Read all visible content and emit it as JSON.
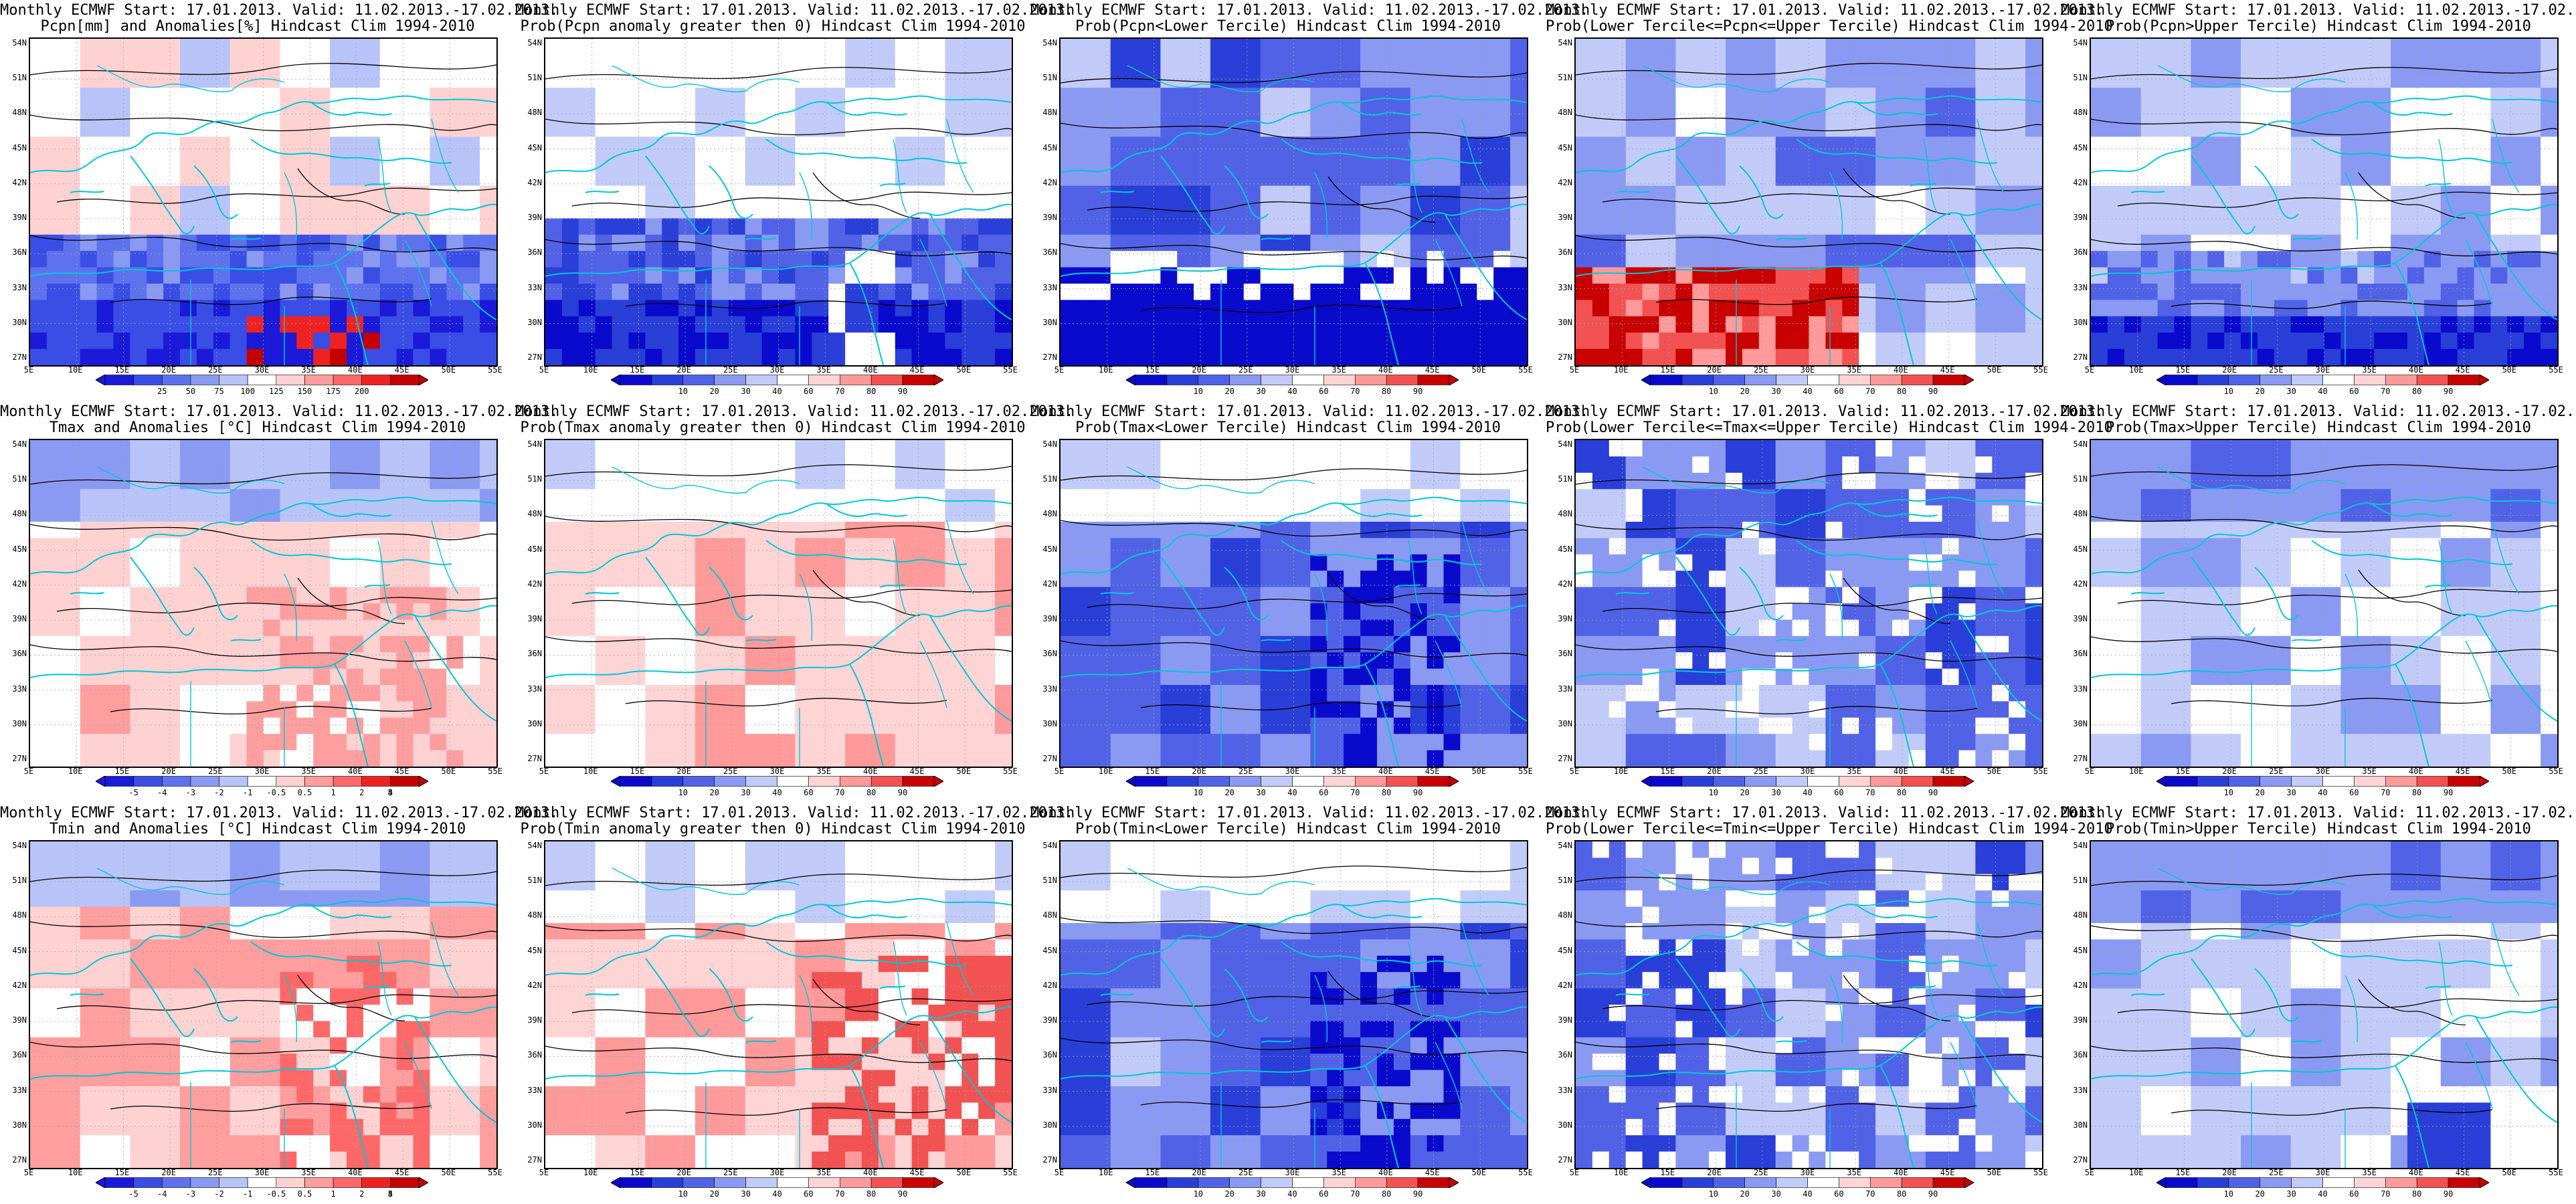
{
  "title_line1": "Monthly ECMWF Start: 17.01.2013. Valid: 11.02.2013.-17.02.2013.",
  "lat_labels": [
    "54N",
    "51N",
    "48N",
    "45N",
    "42N",
    "39N",
    "36N",
    "33N",
    "30N",
    "27N"
  ],
  "lon_labels": [
    "5E",
    "10E",
    "15E",
    "20E",
    "25E",
    "30E",
    "35E",
    "40E",
    "45E",
    "50E",
    "55E"
  ],
  "colors": {
    "coast": "#00c8d8",
    "contour": "#000000",
    "grid": "#9aa7b5",
    "background": "#ffffff"
  },
  "colorbars": {
    "pcpn_anom": {
      "colors": [
        "#1a1ad8",
        "#3a4ee6",
        "#5e72ee",
        "#8a9af2",
        "#b8c4f8",
        "#ffffff",
        "#ffd2d2",
        "#ff9e9e",
        "#ff6868",
        "#ef2222",
        "#c40000"
      ],
      "labels": [
        "25",
        "50",
        "75",
        "100",
        "125",
        "150",
        "175",
        "200"
      ]
    },
    "temp_anom": {
      "colors": [
        "#1a1ad8",
        "#3a4ee6",
        "#5e72ee",
        "#8a9af2",
        "#b8c4f8",
        "#ffffff",
        "#ffd2d2",
        "#ff9e9e",
        "#ff6868",
        "#ef2222",
        "#c40000"
      ],
      "labels": [
        "-5",
        "-4",
        "-3",
        "-2",
        "-1",
        "-0.5",
        "0.5",
        "1",
        "2",
        "3",
        "4",
        "5"
      ]
    },
    "prob": {
      "colors": [
        "#0a0acc",
        "#2a3ed8",
        "#5262e6",
        "#8a9af2",
        "#c2cbf8",
        "#ffffff",
        "#ffd4d4",
        "#ff9a9a",
        "#f25252",
        "#c80000"
      ],
      "labels": [
        "10",
        "20",
        "30",
        "40",
        "60",
        "70",
        "80",
        "90"
      ]
    }
  },
  "panels": [
    {
      "title_line2": "Pcpn[mm] and Anomalies[%] Hindcast Clim 1994-2010",
      "variable": "pcpn",
      "field": "anomaly",
      "colorbar": "pcpn_anom"
    },
    {
      "title_line2": "Prob(Pcpn anomaly greater then 0) Hindcast Clim 1994-2010",
      "variable": "pcpn",
      "field": "prob_gt0",
      "colorbar": "prob"
    },
    {
      "title_line2": "Prob(Pcpn<Lower Tercile) Hindcast Clim 1994-2010",
      "variable": "pcpn",
      "field": "prob_lower",
      "colorbar": "prob"
    },
    {
      "title_line2": "Prob(Lower Tercile<=Pcpn<=Upper Tercile) Hindcast Clim 1994-2010",
      "variable": "pcpn",
      "field": "prob_middle",
      "colorbar": "prob"
    },
    {
      "title_line2": "Prob(Pcpn>Upper Tercile) Hindcast Clim 1994-2010",
      "variable": "pcpn",
      "field": "prob_upper",
      "colorbar": "prob"
    },
    {
      "title_line2": "Tmax and Anomalies [°C] Hindcast Clim 1994-2010",
      "variable": "tmax",
      "field": "anomaly",
      "colorbar": "temp_anom"
    },
    {
      "title_line2": "Prob(Tmax anomaly greater then 0) Hindcast Clim 1994-2010",
      "variable": "tmax",
      "field": "prob_gt0",
      "colorbar": "prob"
    },
    {
      "title_line2": "Prob(Tmax<Lower Tercile) Hindcast Clim 1994-2010",
      "variable": "tmax",
      "field": "prob_lower",
      "colorbar": "prob"
    },
    {
      "title_line2": "Prob(Lower Tercile<=Tmax<=Upper Tercile) Hindcast Clim 1994-2010",
      "variable": "tmax",
      "field": "prob_middle",
      "colorbar": "prob"
    },
    {
      "title_line2": "Prob(Tmax>Upper Tercile) Hindcast Clim 1994-2010",
      "variable": "tmax",
      "field": "prob_upper",
      "colorbar": "prob"
    },
    {
      "title_line2": "Tmin and Anomalies [°C] Hindcast Clim 1994-2010",
      "variable": "tmin",
      "field": "anomaly",
      "colorbar": "temp_anom"
    },
    {
      "title_line2": "Prob(Tmin anomaly greater then 0) Hindcast Clim 1994-2010",
      "variable": "tmin",
      "field": "prob_gt0",
      "colorbar": "prob"
    },
    {
      "title_line2": "Prob(Tmin<Lower Tercile) Hindcast Clim 1994-2010",
      "variable": "tmin",
      "field": "prob_lower",
      "colorbar": "prob"
    },
    {
      "title_line2": "Prob(Lower Tercile<=Tmin<=Upper Tercile) Hindcast Clim 1994-2010",
      "variable": "tmin",
      "field": "prob_middle",
      "colorbar": "prob"
    },
    {
      "title_line2": "Prob(Tmin>Upper Tercile) Hindcast Clim 1994-2010",
      "variable": "tmin",
      "field": "prob_upper",
      "colorbar": "prob"
    }
  ]
}
